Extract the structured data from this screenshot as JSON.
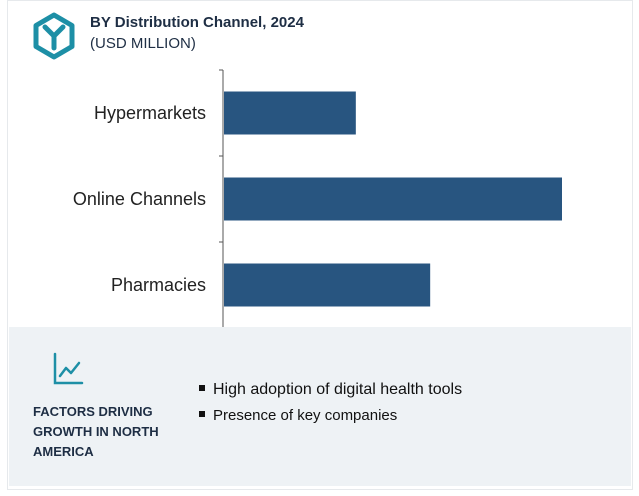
{
  "header": {
    "title": "BY Distribution Channel, 2024",
    "subtitle": "(USD MILLION)",
    "logo_icon": "hexagon-y-logo-icon"
  },
  "chart_data": {
    "type": "bar",
    "orientation": "horizontal",
    "categories": [
      "Hypermarkets",
      "Online Channels",
      "Pharmacies"
    ],
    "values": [
      39,
      100,
      61
    ],
    "bar_color": "#285580",
    "grid": false,
    "legend": "none"
  },
  "footer": {
    "icon": "trend-chart-icon",
    "title": "FACTORS DRIVING GROWTH IN NORTH AMERICA",
    "bullets": [
      "High adoption of digital health tools",
      "Presence of key companies"
    ],
    "accent_color": "#1d8fa6"
  }
}
